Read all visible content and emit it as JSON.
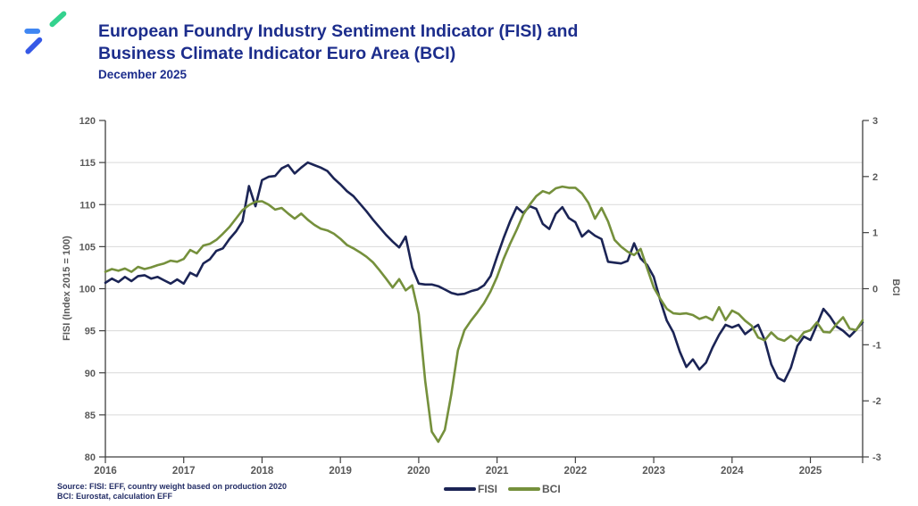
{
  "header": {
    "title_line1": "European Foundry Industry Sentiment Indicator (FISI) and",
    "title_line2": "Business Climate Indicator Euro Area (BCI)",
    "subtitle": "December 2025"
  },
  "footer": {
    "source_line1": "Source: FISI: EFF, country weight based on production 2020",
    "source_line2": "BCI: Eurostat, calculation EFF"
  },
  "colors": {
    "title_navy": "#1c2d8c",
    "fisi_line": "#1b2455",
    "bci_line": "#75903c",
    "axis_text": "#595959",
    "gridline": "#d9d9d9",
    "spine": "#3f3f3f",
    "source_text": "#232d66"
  },
  "chart_data": {
    "type": "line",
    "title": "European Foundry Industry Sentiment Indicator (FISI) and Business Climate Indicator Euro Area (BCI)",
    "subtitle": "December 2025",
    "frequency": "monthly",
    "x_start": "2016-01",
    "x_end": "2025-09",
    "x_tick_labels": [
      "2016",
      "2017",
      "2018",
      "2019",
      "2020",
      "2021",
      "2022",
      "2023",
      "2024",
      "2025"
    ],
    "grid": "horizontal",
    "legend_position": "bottom-center",
    "left_axis": {
      "label": "FISI (Index 2015 = 100)",
      "min": 80,
      "max": 120,
      "ticks": [
        80,
        85,
        90,
        95,
        100,
        105,
        110,
        115,
        120
      ]
    },
    "right_axis": {
      "label": "BCI",
      "min": -3,
      "max": 3,
      "ticks": [
        -3,
        -2,
        -1,
        0,
        1,
        2,
        3
      ]
    },
    "series": [
      {
        "name": "FISI",
        "axis": "left",
        "color": "#1b2455",
        "values": [
          100.7,
          101.2,
          100.8,
          101.4,
          100.9,
          101.5,
          101.6,
          101.2,
          101.4,
          101.0,
          100.6,
          101.1,
          100.6,
          101.9,
          101.5,
          103.0,
          103.5,
          104.5,
          104.8,
          105.9,
          106.8,
          108.0,
          112.2,
          109.8,
          112.9,
          113.3,
          113.4,
          114.3,
          114.7,
          113.7,
          114.4,
          115.0,
          114.7,
          114.4,
          114.0,
          113.1,
          112.4,
          111.6,
          111.0,
          110.1,
          109.2,
          108.2,
          107.3,
          106.4,
          105.6,
          104.9,
          106.2,
          102.5,
          100.6,
          100.5,
          100.5,
          100.3,
          99.9,
          99.5,
          99.3,
          99.4,
          99.7,
          99.9,
          100.4,
          101.5,
          103.8,
          106.0,
          108.0,
          109.7,
          109.0,
          109.8,
          109.5,
          107.7,
          107.1,
          108.9,
          109.7,
          108.4,
          107.9,
          106.2,
          106.9,
          106.3,
          105.9,
          103.2,
          103.1,
          103.0,
          103.3,
          105.4,
          103.6,
          102.8,
          101.4,
          98.6,
          96.2,
          94.8,
          92.5,
          90.7,
          91.6,
          90.4,
          91.2,
          93.0,
          94.5,
          95.7,
          95.4,
          95.7,
          94.6,
          95.2,
          95.7,
          93.9,
          91.0,
          89.4,
          89.0,
          90.6,
          93.2,
          94.3,
          93.9,
          95.7,
          97.6,
          96.7,
          95.5,
          95.0,
          94.3,
          95.1,
          96.0
        ]
      },
      {
        "name": "BCI",
        "axis": "right",
        "color": "#75903c",
        "values": [
          0.3,
          0.35,
          0.32,
          0.36,
          0.3,
          0.39,
          0.35,
          0.38,
          0.42,
          0.45,
          0.5,
          0.48,
          0.53,
          0.69,
          0.63,
          0.77,
          0.8,
          0.87,
          0.98,
          1.1,
          1.25,
          1.4,
          1.49,
          1.55,
          1.56,
          1.5,
          1.41,
          1.44,
          1.34,
          1.25,
          1.34,
          1.23,
          1.14,
          1.07,
          1.04,
          0.98,
          0.89,
          0.78,
          0.72,
          0.65,
          0.57,
          0.47,
          0.33,
          0.18,
          0.02,
          0.17,
          -0.03,
          0.06,
          -0.45,
          -1.65,
          -2.55,
          -2.73,
          -2.52,
          -1.88,
          -1.1,
          -0.74,
          -0.57,
          -0.42,
          -0.26,
          -0.05,
          0.21,
          0.53,
          0.8,
          1.05,
          1.32,
          1.5,
          1.65,
          1.74,
          1.7,
          1.79,
          1.82,
          1.8,
          1.8,
          1.7,
          1.53,
          1.25,
          1.44,
          1.2,
          0.87,
          0.75,
          0.66,
          0.6,
          0.71,
          0.36,
          0.02,
          -0.18,
          -0.36,
          -0.44,
          -0.45,
          -0.44,
          -0.47,
          -0.54,
          -0.5,
          -0.56,
          -0.33,
          -0.56,
          -0.39,
          -0.45,
          -0.57,
          -0.66,
          -0.87,
          -0.92,
          -0.78,
          -0.89,
          -0.93,
          -0.84,
          -0.93,
          -0.78,
          -0.74,
          -0.6,
          -0.77,
          -0.78,
          -0.63,
          -0.51,
          -0.71,
          -0.74,
          -0.56
        ]
      }
    ]
  },
  "legend": {
    "items": [
      {
        "label": "FISI",
        "color": "#1b2455"
      },
      {
        "label": "BCI",
        "color": "#75903c"
      }
    ]
  }
}
